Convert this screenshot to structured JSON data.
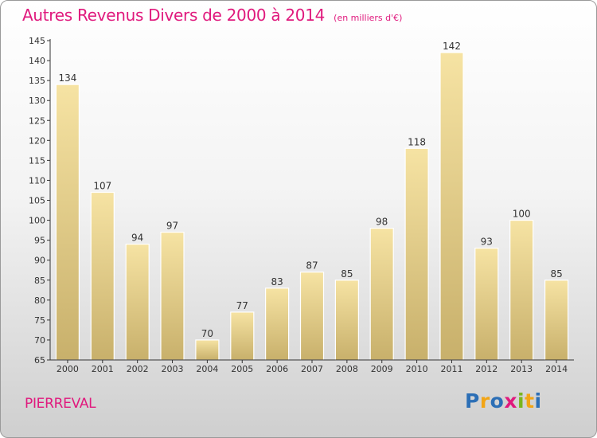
{
  "chart_data": {
    "type": "bar",
    "title": "Autres Revenus Divers de 2000 à 2014",
    "unit": "(en milliers d'€)",
    "categories": [
      "2000",
      "2001",
      "2002",
      "2003",
      "2004",
      "2005",
      "2006",
      "2007",
      "2008",
      "2009",
      "2010",
      "2011",
      "2012",
      "2013",
      "2014"
    ],
    "values": [
      134,
      107,
      94,
      97,
      70,
      77,
      83,
      87,
      85,
      98,
      118,
      142,
      93,
      100,
      85
    ],
    "ylim": [
      65,
      145
    ],
    "yticks": [
      65,
      70,
      75,
      80,
      85,
      90,
      95,
      100,
      105,
      110,
      115,
      120,
      125,
      130,
      135,
      140,
      145
    ],
    "xlabel": "",
    "ylabel": "",
    "grid": false,
    "legend": "none"
  },
  "footer": {
    "label": "PIERREVAL",
    "logo": {
      "letters": [
        "P",
        "r",
        "o",
        "x",
        "i",
        "t",
        "i"
      ],
      "colors": [
        "#2c6fb6",
        "#f2a516",
        "#2c6fb6",
        "#e0197d",
        "#7ab51d",
        "#f2a516",
        "#2c6fb6"
      ]
    }
  },
  "colors": {
    "accent": "#e0197d",
    "bar_fill_top": "#f6e3a3",
    "bar_fill_bottom": "#c8b06b",
    "axis": "#333333",
    "text": "#333333"
  }
}
